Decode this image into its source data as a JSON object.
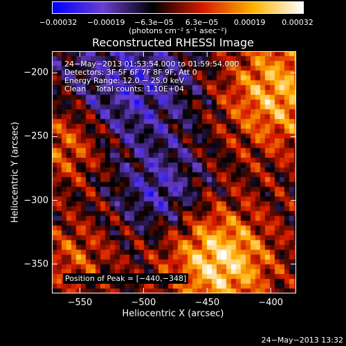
{
  "chart_data": {
    "type": "heatmap",
    "title": "Reconstructed RHESSI Image",
    "xlabel": "Heliocentric X (arcsec)",
    "ylabel": "Heliocentric Y (arcsec)",
    "xlim": [
      -572,
      -380
    ],
    "ylim": [
      -373,
      -183
    ],
    "x_ticks": [
      -550,
      -500,
      -450,
      -400
    ],
    "x_tick_labels": [
      "−550",
      "−500",
      "−450",
      "−400"
    ],
    "y_ticks": [
      -350,
      -300,
      -250,
      -200
    ],
    "y_tick_labels": [
      "−350",
      "−300",
      "−250",
      "−200"
    ],
    "colorbar": {
      "min": -0.00032,
      "max": 0.00032,
      "tick_labels": [
        "−0.00032",
        "−0.00019",
        "−6.3e−05",
        "6.3e−05",
        "0.00019",
        "0.00032"
      ],
      "units": "(photons cm⁻² s⁻¹ asec⁻²)",
      "colormap": [
        "#0000ff",
        "#6a3fd0",
        "#000000",
        "#d61a00",
        "#ffb000",
        "#ffffff"
      ]
    },
    "info": {
      "time": "24−May−2013 01:53:54.000 to 01:59:54.000",
      "detectors": "Detectors: 3F 5F 6F 7F 8F 9F, Att 0",
      "energy": "Energy Range: 12.0 − 25.0 keV",
      "method": "Clean",
      "counts": "Total counts: 1.10E+04"
    },
    "peak": "Position of Peak = [−440,−348]",
    "peak_position": [
      -440,
      -348
    ]
  },
  "timestamp": "24−May−2013 13:32"
}
